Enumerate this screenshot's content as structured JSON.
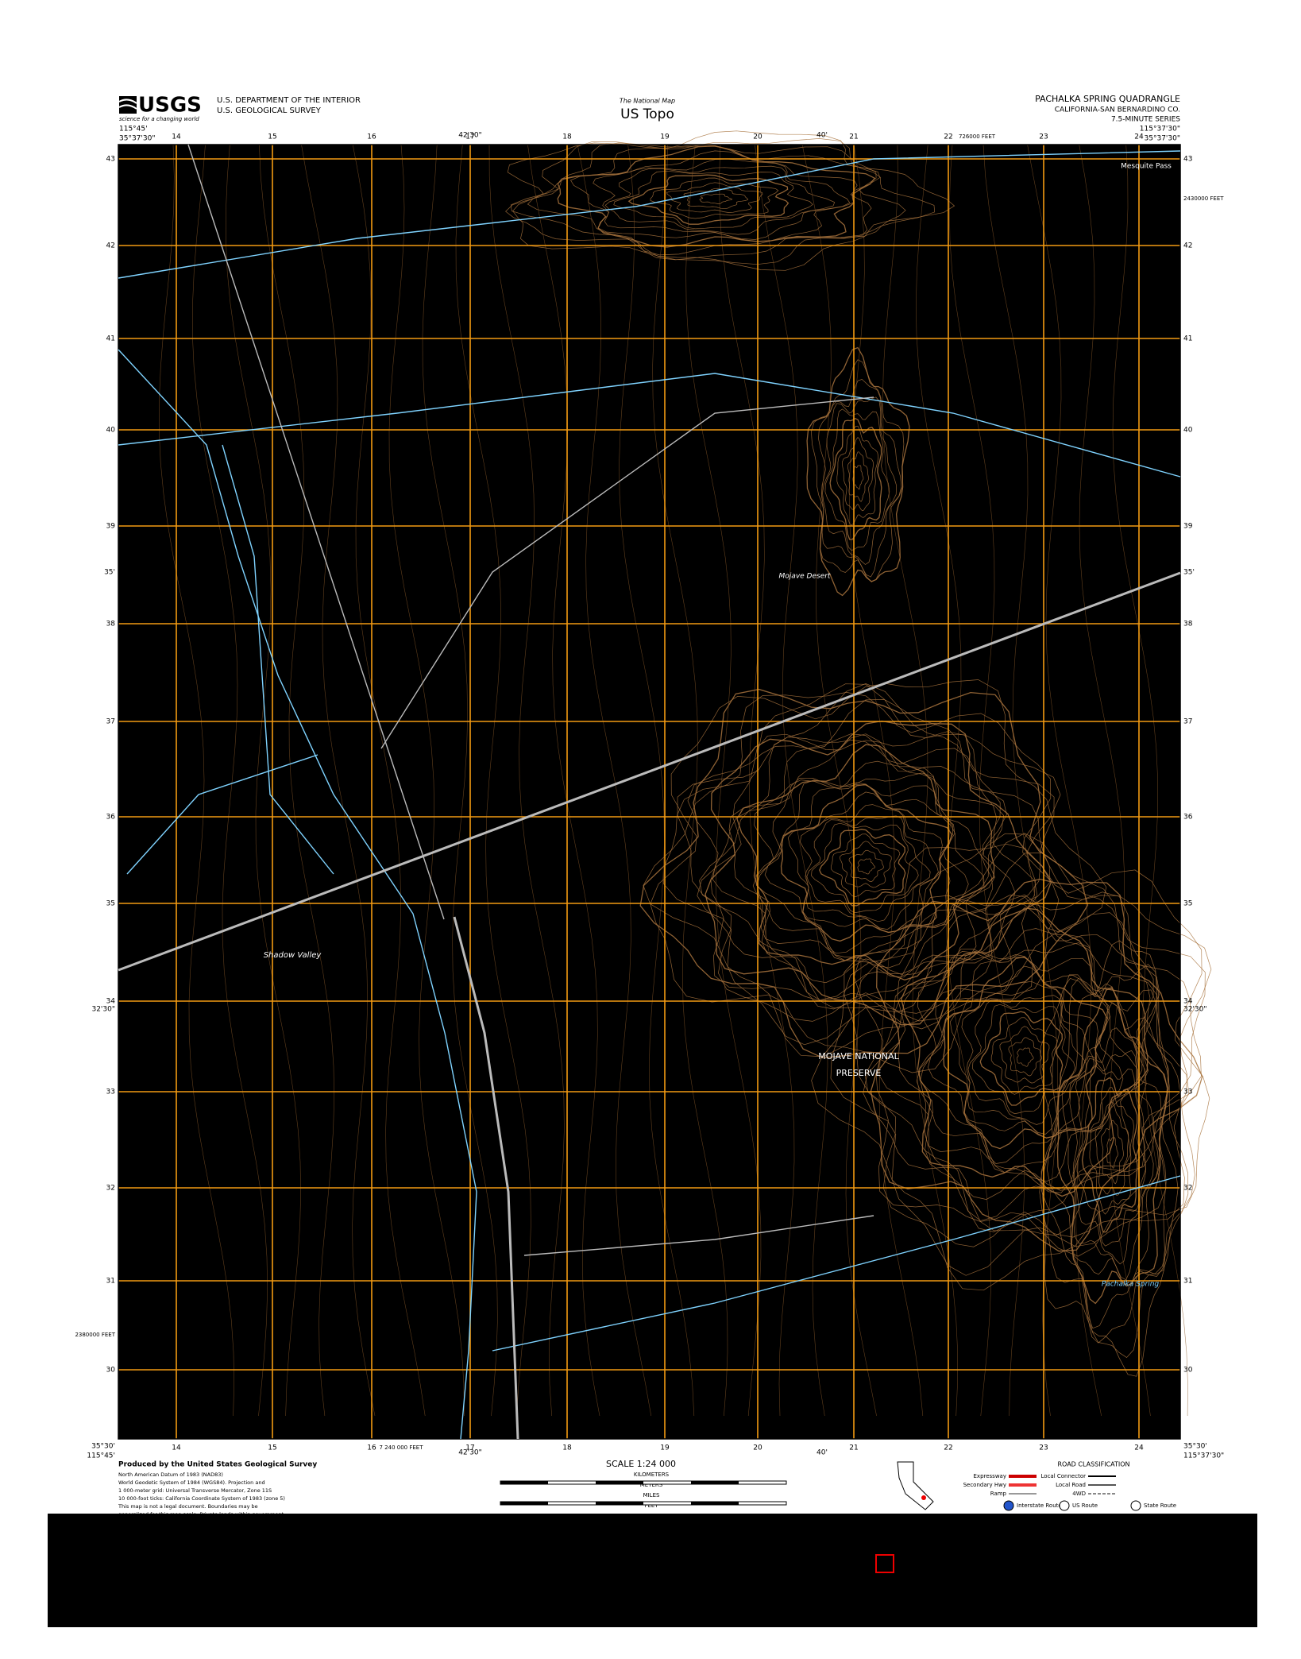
{
  "header": {
    "logo": "USGS",
    "tagline": "science for a changing world",
    "agency": "U.S. DEPARTMENT OF THE INTERIOR",
    "survey": "U.S. GEOLOGICAL SURVEY",
    "national_map": "The National Map",
    "product": "US Topo",
    "quad_title": "PACHALKA SPRING QUADRANGLE",
    "county": "CALIFORNIA-SAN BERNARDINO CO.",
    "series": "7.5-MINUTE SERIES"
  },
  "map": {
    "corners": {
      "west_lon": "115°45'",
      "north_lat": "35°37'30\"",
      "east_lon": "115°37'30\"",
      "south_lat": "35°30'"
    },
    "lon_ticks": [
      "42'30\"",
      "40'"
    ],
    "lat_ticks": [
      "35'",
      "32'30\""
    ],
    "eastings": [
      "14",
      "15",
      "16",
      "17",
      "18",
      "19",
      "20",
      "21",
      "22",
      "23",
      "24"
    ],
    "northings": [
      "43",
      "42",
      "41",
      "40",
      "39",
      "38",
      "37",
      "36",
      "35",
      "34",
      "33",
      "32",
      "31",
      "30"
    ],
    "feet_labels": [
      "2430000 FEET",
      "2380000 FEET",
      "726000 FEET",
      "7 240 000 FEET"
    ],
    "names": [
      "Mesquite Pass",
      "Mojave Desert",
      "Shadow Valley",
      "MOJAVE NATIONAL",
      "PRESERVE",
      "Pachalka Spring"
    ]
  },
  "footer": {
    "producer": "Produced by the United States Geological Survey",
    "notes": [
      "North American Datum of 1983 (NAD83)",
      "World Geodetic System of 1984 (WGS84). Projection and",
      "1 000-meter grid: Universal Transverse Mercator, Zone 11S",
      "10 000-foot ticks: California Coordinate System of 1983 (zone 5)",
      "This map is not a legal document. Boundaries may be",
      "generalized for this map scale. Private lands within government"
    ],
    "scale": "SCALE 1:24 000",
    "units": [
      "KILOMETERS",
      "METERS",
      "MILES",
      "FEET"
    ],
    "road_title": "ROAD CLASSIFICATION",
    "roads": [
      "Expressway",
      "Secondary Hwy",
      "Ramp",
      "Local Connector",
      "Local Road",
      "4WD"
    ],
    "routes": [
      "Interstate Route",
      "US Route",
      "State Route"
    ]
  }
}
